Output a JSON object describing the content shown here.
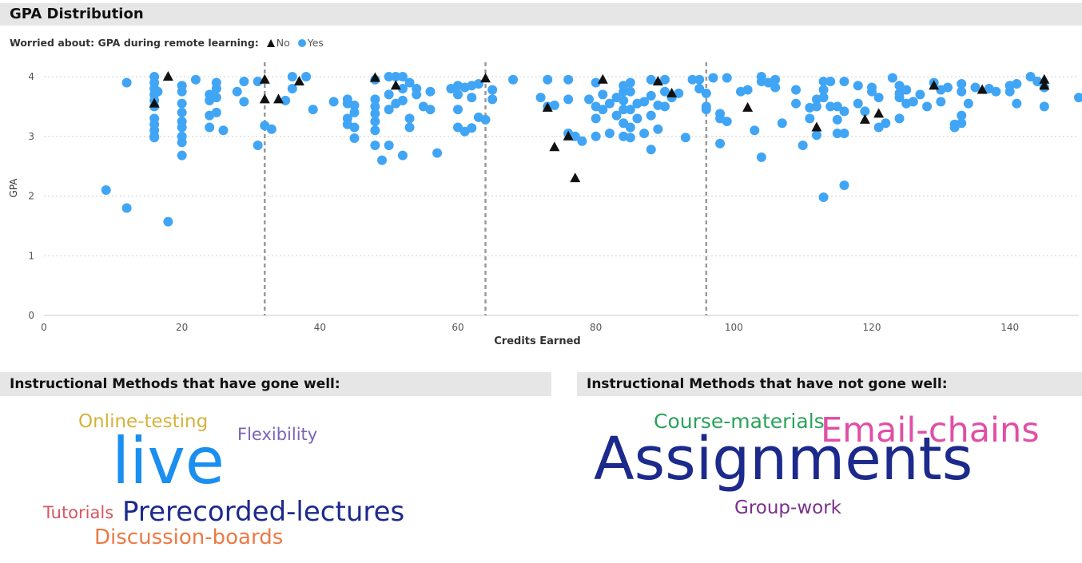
{
  "header": {
    "title": "GPA Distribution"
  },
  "legend": {
    "title": "Worried about: GPA during remote learning:",
    "items": [
      {
        "label": "No",
        "shape": "triangle",
        "color": "#111111"
      },
      {
        "label": "Yes",
        "shape": "circle",
        "color": "#41a5f5"
      }
    ]
  },
  "chart_data": {
    "type": "scatter",
    "title": "GPA Distribution",
    "xlabel": "Credits Earned",
    "ylabel": "GPA",
    "xlim": [
      0,
      150
    ],
    "ylim": [
      0,
      4
    ],
    "xticks": [
      "0",
      "20",
      "40",
      "60",
      "80",
      "100",
      "120",
      "140"
    ],
    "yticks": [
      "0",
      "1",
      "2",
      "3",
      "4"
    ],
    "reference_lines_x": [
      32,
      64,
      96
    ],
    "grid": true,
    "series": [
      {
        "name": "Yes",
        "marker": "circle",
        "color": "#41a5f5",
        "points": [
          [
            9,
            2.1
          ],
          [
            12,
            1.8
          ],
          [
            12,
            3.9
          ],
          [
            16,
            4.0
          ],
          [
            16,
            3.9
          ],
          [
            16,
            3.8
          ],
          [
            16,
            3.7
          ],
          [
            16,
            3.6
          ],
          [
            16,
            3.5
          ],
          [
            16,
            3.3
          ],
          [
            16,
            3.2
          ],
          [
            16,
            3.1
          ],
          [
            16,
            3.0
          ],
          [
            16,
            2.98
          ],
          [
            16.5,
            3.75
          ],
          [
            18,
            1.57
          ],
          [
            20,
            3.85
          ],
          [
            20,
            3.75
          ],
          [
            20,
            3.55
          ],
          [
            20,
            3.4
          ],
          [
            20,
            3.25
          ],
          [
            20,
            3.15
          ],
          [
            20,
            3.0
          ],
          [
            20,
            2.9
          ],
          [
            20,
            2.68
          ],
          [
            22,
            3.95
          ],
          [
            24,
            3.7
          ],
          [
            24,
            3.6
          ],
          [
            24,
            3.35
          ],
          [
            24,
            3.15
          ],
          [
            25,
            3.9
          ],
          [
            25,
            3.8
          ],
          [
            25,
            3.65
          ],
          [
            25,
            3.4
          ],
          [
            26,
            3.1
          ],
          [
            28,
            3.75
          ],
          [
            29,
            3.92
          ],
          [
            29,
            3.58
          ],
          [
            31,
            3.92
          ],
          [
            31,
            2.85
          ],
          [
            32,
            3.18
          ],
          [
            33,
            3.12
          ],
          [
            35,
            3.6
          ],
          [
            36,
            4.0
          ],
          [
            36,
            3.8
          ],
          [
            38,
            4.0
          ],
          [
            39,
            3.45
          ],
          [
            42,
            3.58
          ],
          [
            44,
            3.62
          ],
          [
            44,
            3.55
          ],
          [
            44,
            3.3
          ],
          [
            44,
            3.2
          ],
          [
            45,
            3.52
          ],
          [
            45,
            3.4
          ],
          [
            45,
            3.15
          ],
          [
            45,
            2.97
          ],
          [
            48,
            3.95
          ],
          [
            48,
            3.62
          ],
          [
            48,
            3.5
          ],
          [
            48,
            3.38
          ],
          [
            48,
            3.25
          ],
          [
            48,
            3.1
          ],
          [
            48,
            2.85
          ],
          [
            49,
            2.6
          ],
          [
            50,
            4.0
          ],
          [
            50,
            3.7
          ],
          [
            50,
            3.45
          ],
          [
            50,
            2.85
          ],
          [
            51,
            4.0
          ],
          [
            51,
            3.55
          ],
          [
            52,
            4.0
          ],
          [
            52,
            3.8
          ],
          [
            52,
            3.6
          ],
          [
            52,
            2.68
          ],
          [
            53,
            3.9
          ],
          [
            53,
            3.3
          ],
          [
            53,
            3.15
          ],
          [
            54,
            3.8
          ],
          [
            54,
            3.7
          ],
          [
            55,
            3.5
          ],
          [
            56,
            3.75
          ],
          [
            56,
            3.45
          ],
          [
            57,
            2.72
          ],
          [
            59,
            3.8
          ],
          [
            60,
            3.85
          ],
          [
            60,
            3.7
          ],
          [
            60,
            3.45
          ],
          [
            60,
            3.15
          ],
          [
            61,
            3.82
          ],
          [
            61,
            3.08
          ],
          [
            62,
            3.85
          ],
          [
            62,
            3.65
          ],
          [
            62,
            3.14
          ],
          [
            63,
            3.88
          ],
          [
            63,
            3.32
          ],
          [
            64,
            3.28
          ],
          [
            65,
            3.78
          ],
          [
            65,
            3.62
          ],
          [
            68,
            3.95
          ],
          [
            72,
            3.65
          ],
          [
            73,
            3.95
          ],
          [
            73,
            3.5
          ],
          [
            74,
            3.52
          ],
          [
            76,
            3.95
          ],
          [
            76,
            3.62
          ],
          [
            76,
            3.05
          ],
          [
            77,
            3.0
          ],
          [
            78,
            2.92
          ],
          [
            79,
            3.62
          ],
          [
            80,
            3.9
          ],
          [
            80,
            3.5
          ],
          [
            80,
            3.3
          ],
          [
            80,
            3.0
          ],
          [
            81,
            3.7
          ],
          [
            81,
            3.45
          ],
          [
            82,
            3.55
          ],
          [
            82,
            3.05
          ],
          [
            83,
            3.65
          ],
          [
            83,
            3.35
          ],
          [
            84,
            3.85
          ],
          [
            84,
            3.75
          ],
          [
            84,
            3.6
          ],
          [
            84,
            3.45
          ],
          [
            84,
            3.22
          ],
          [
            84,
            3.0
          ],
          [
            85,
            3.9
          ],
          [
            85,
            3.75
          ],
          [
            85,
            3.45
          ],
          [
            85,
            3.15
          ],
          [
            85,
            2.98
          ],
          [
            86,
            3.55
          ],
          [
            86,
            3.3
          ],
          [
            87,
            3.58
          ],
          [
            87,
            3.05
          ],
          [
            88,
            3.95
          ],
          [
            88,
            3.68
          ],
          [
            88,
            3.35
          ],
          [
            88,
            2.78
          ],
          [
            89,
            3.52
          ],
          [
            89,
            3.12
          ],
          [
            90,
            3.95
          ],
          [
            90,
            3.75
          ],
          [
            90,
            3.5
          ],
          [
            91,
            3.65
          ],
          [
            92,
            3.72
          ],
          [
            93,
            2.98
          ],
          [
            94,
            3.95
          ],
          [
            95,
            3.95
          ],
          [
            95,
            3.8
          ],
          [
            96,
            3.72
          ],
          [
            96,
            3.5
          ],
          [
            96,
            3.45
          ],
          [
            97,
            3.98
          ],
          [
            98,
            3.38
          ],
          [
            98,
            3.3
          ],
          [
            98,
            2.88
          ],
          [
            99,
            3.98
          ],
          [
            99,
            3.25
          ],
          [
            101,
            3.75
          ],
          [
            102,
            3.78
          ],
          [
            103,
            3.1
          ],
          [
            104,
            4.0
          ],
          [
            104,
            3.92
          ],
          [
            104,
            2.65
          ],
          [
            105,
            3.9
          ],
          [
            106,
            3.95
          ],
          [
            106,
            3.82
          ],
          [
            107,
            3.22
          ],
          [
            109,
            3.78
          ],
          [
            109,
            3.55
          ],
          [
            110,
            2.85
          ],
          [
            111,
            3.48
          ],
          [
            111,
            3.3
          ],
          [
            112,
            3.62
          ],
          [
            112,
            3.5
          ],
          [
            112,
            3.02
          ],
          [
            113,
            3.92
          ],
          [
            113,
            3.78
          ],
          [
            113,
            3.65
          ],
          [
            113,
            1.98
          ],
          [
            114,
            3.92
          ],
          [
            114,
            3.5
          ],
          [
            115,
            3.5
          ],
          [
            115,
            3.28
          ],
          [
            115,
            3.05
          ],
          [
            116,
            3.92
          ],
          [
            116,
            3.42
          ],
          [
            116,
            3.05
          ],
          [
            116,
            2.18
          ],
          [
            118,
            3.85
          ],
          [
            118,
            3.55
          ],
          [
            119,
            3.42
          ],
          [
            120,
            3.82
          ],
          [
            120,
            3.75
          ],
          [
            121,
            3.65
          ],
          [
            121,
            3.15
          ],
          [
            122,
            3.22
          ],
          [
            123,
            3.98
          ],
          [
            124,
            3.85
          ],
          [
            124,
            3.72
          ],
          [
            124,
            3.65
          ],
          [
            124,
            3.3
          ],
          [
            125,
            3.78
          ],
          [
            125,
            3.55
          ],
          [
            126,
            3.58
          ],
          [
            127,
            3.7
          ],
          [
            128,
            3.5
          ],
          [
            129,
            3.9
          ],
          [
            130,
            3.78
          ],
          [
            130,
            3.58
          ],
          [
            131,
            3.82
          ],
          [
            132,
            3.2
          ],
          [
            132,
            3.15
          ],
          [
            133,
            3.88
          ],
          [
            133,
            3.75
          ],
          [
            133,
            3.35
          ],
          [
            133,
            3.22
          ],
          [
            134,
            3.55
          ],
          [
            135,
            3.82
          ],
          [
            137,
            3.8
          ],
          [
            138,
            3.75
          ],
          [
            140,
            3.75
          ],
          [
            140,
            3.85
          ],
          [
            141,
            3.88
          ],
          [
            141,
            3.55
          ],
          [
            143,
            4.0
          ],
          [
            144,
            3.92
          ],
          [
            145,
            3.82
          ],
          [
            145,
            3.5
          ],
          [
            150,
            3.65
          ]
        ]
      },
      {
        "name": "No",
        "marker": "triangle",
        "color": "#111111",
        "points": [
          [
            16,
            3.55
          ],
          [
            18,
            4.0
          ],
          [
            32,
            3.95
          ],
          [
            32,
            3.62
          ],
          [
            34,
            3.62
          ],
          [
            37,
            3.92
          ],
          [
            48,
            3.98
          ],
          [
            51,
            3.85
          ],
          [
            64,
            3.97
          ],
          [
            73,
            3.48
          ],
          [
            74,
            2.82
          ],
          [
            76,
            3.0
          ],
          [
            77,
            2.3
          ],
          [
            81,
            3.95
          ],
          [
            89,
            3.92
          ],
          [
            91,
            3.72
          ],
          [
            102,
            3.48
          ],
          [
            112,
            3.15
          ],
          [
            119,
            3.28
          ],
          [
            121,
            3.38
          ],
          [
            129,
            3.85
          ],
          [
            136,
            3.78
          ],
          [
            145,
            3.85
          ],
          [
            145,
            3.95
          ]
        ]
      }
    ]
  },
  "wordcloud_left": {
    "title": "Instructional Methods that have gone well:",
    "words": [
      {
        "text": "Online-testing",
        "color": "#d5b23c"
      },
      {
        "text": "Flexibility",
        "color": "#7a64b8"
      },
      {
        "text": "live",
        "color": "#1a8ff0"
      },
      {
        "text": "Tutorials",
        "color": "#d9555f"
      },
      {
        "text": "Prerecorded-lectures",
        "color": "#1c2a8c"
      },
      {
        "text": "Discussion-boards",
        "color": "#eb7a45"
      }
    ]
  },
  "wordcloud_right": {
    "title": "Instructional Methods that have not gone well:",
    "words": [
      {
        "text": "Course-materials",
        "color": "#2aa35a"
      },
      {
        "text": "Email-chains",
        "color": "#e04fa6"
      },
      {
        "text": "Assignments",
        "color": "#1c2a8c"
      },
      {
        "text": "Group-work",
        "color": "#7b2f8c"
      }
    ]
  }
}
